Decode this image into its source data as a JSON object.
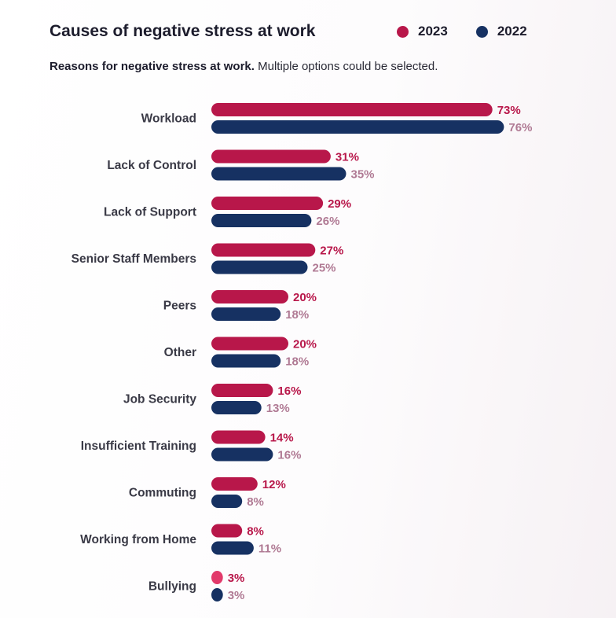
{
  "legend": [
    {
      "label": "2023",
      "color": "#b8174a"
    },
    {
      "label": "2022",
      "color": "#163162"
    }
  ],
  "subtitle": {
    "bold": "Reasons for negative stress at work.",
    "rest": " Multiple options could be selected."
  },
  "chart_data": {
    "type": "bar",
    "orientation": "horizontal",
    "title": "Causes of negative stress at work",
    "categories": [
      "Workload",
      "Lack of Control",
      "Lack of Support",
      "Senior Staff Members",
      "Peers",
      "Other",
      "Job Security",
      "Insufficient Training",
      "Commuting",
      "Working from Home",
      "Bullying"
    ],
    "series": [
      {
        "name": "2023",
        "color": "#b8174a",
        "label_color": "#b8174a",
        "values": [
          73,
          31,
          29,
          27,
          20,
          20,
          16,
          14,
          12,
          8,
          3
        ],
        "value_labels": [
          "73%",
          "31%",
          "29%",
          "27%",
          "20%",
          "20%",
          "16%",
          "14%",
          "12%",
          "8%",
          "3%"
        ]
      },
      {
        "name": "2022",
        "color": "#163162",
        "label_color": "#b07a94",
        "values": [
          76,
          35,
          26,
          25,
          18,
          18,
          13,
          16,
          8,
          11,
          3
        ],
        "value_labels": [
          "76%",
          "35%",
          "26%",
          "25%",
          "18%",
          "18%",
          "13%",
          "16%",
          "8%",
          "11%",
          "3%"
        ]
      }
    ],
    "unit": "%",
    "xlim": [
      0,
      76
    ],
    "grid": false,
    "legend_position": "top-right"
  }
}
